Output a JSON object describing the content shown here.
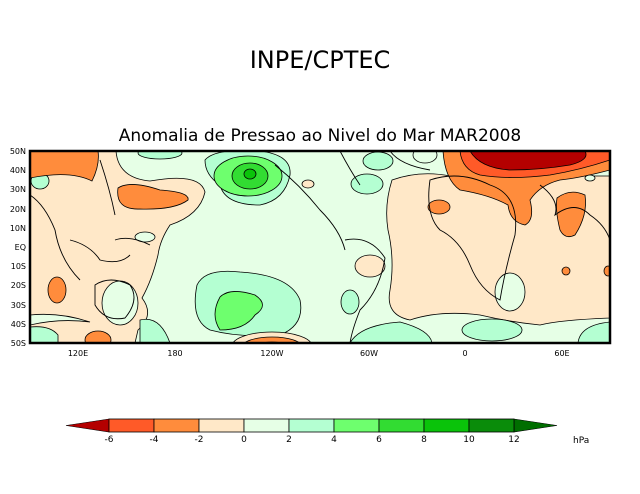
{
  "header": {
    "title": "INPE/CPTEC",
    "subtitle": "Anomalia de Pressao ao Nivel do Mar MAR2008"
  },
  "map": {
    "lat_labels": [
      "50N",
      "40N",
      "30N",
      "20N",
      "10N",
      "EQ",
      "10S",
      "20S",
      "30S",
      "40S",
      "50S"
    ],
    "lon_labels": [
      "120E",
      "180",
      "120W",
      "60W",
      "0",
      "60E"
    ]
  },
  "colorbar": {
    "unit": "hPa",
    "ticks": [
      "-6",
      "-4",
      "-2",
      "0",
      "2",
      "4",
      "6",
      "8",
      "10",
      "12"
    ],
    "colors": [
      "#b40000",
      "#ff5a28",
      "#ff8c3c",
      "#ffe8c8",
      "#e6ffe6",
      "#b4ffd2",
      "#6eff6e",
      "#32dc32",
      "#0ac30a",
      "#0a8c0a",
      "#006e00"
    ]
  }
}
